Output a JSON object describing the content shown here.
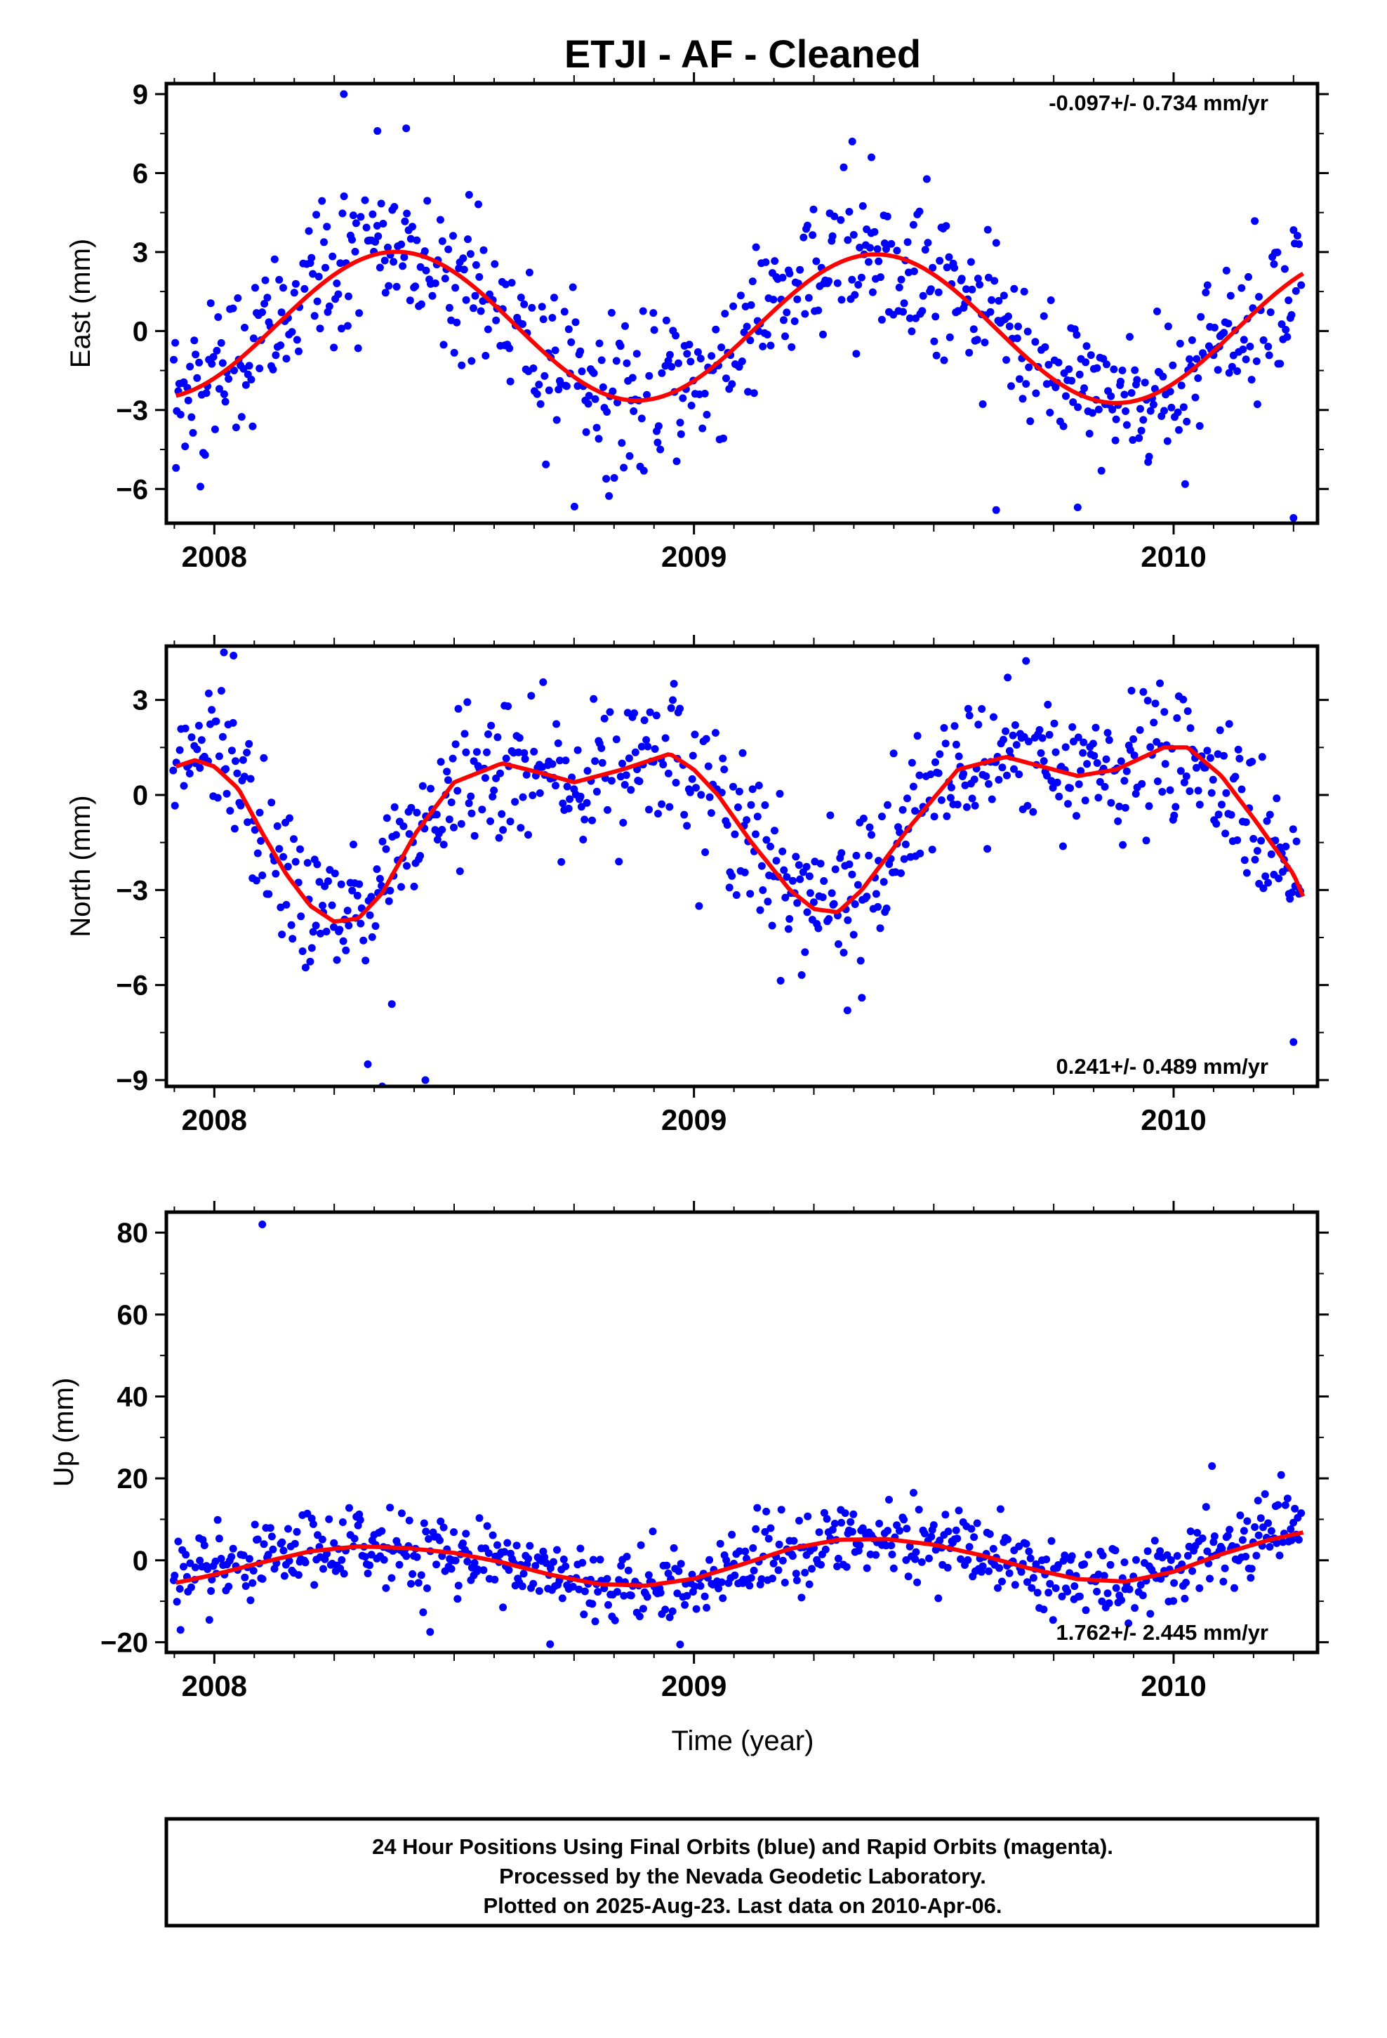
{
  "title": "ETJI  - AF - Cleaned",
  "xlabel": "Time (year)",
  "footer": {
    "line1": "24 Hour Positions Using Final Orbits (blue) and Rapid Orbits (magenta).",
    "line2": "Processed by the Nevada Geodetic Laboratory.",
    "line3": "Plotted on 2025-Aug-23. Last data on 2010-Apr-06."
  },
  "colors": {
    "final": "#0000ff",
    "fit": "#ff0000",
    "frame": "#000000"
  },
  "chart_data": [
    {
      "type": "scatter",
      "ylabel": "East (mm)",
      "rate_text": "-0.097+/- 0.734 mm/yr",
      "rate_position": "top-right",
      "xlim": [
        2007.9,
        2010.3
      ],
      "ylim": [
        -7.3,
        9.4
      ],
      "yticks": [
        -6,
        -3,
        0,
        3,
        6,
        9
      ],
      "xticks": [
        2008,
        2009,
        2010
      ],
      "fit": {
        "offset": 0.15,
        "amplitude": 2.8,
        "phase_peak": 2008.38,
        "trend_mm_per_yr": -0.097
      },
      "scatter_sd": 1.45,
      "outliers": [
        [
          2008.27,
          9.0
        ],
        [
          2008.34,
          7.6
        ],
        [
          2008.4,
          7.7
        ],
        [
          2009.33,
          7.2
        ],
        [
          2009.37,
          6.6
        ],
        [
          2009.63,
          -6.8
        ],
        [
          2009.8,
          -6.7
        ],
        [
          2010.25,
          -7.1
        ],
        [
          2007.92,
          -5.2
        ]
      ]
    },
    {
      "type": "scatter",
      "ylabel": "North (mm)",
      "rate_text": "0.241+/- 0.489 mm/yr",
      "rate_position": "bottom-right",
      "xlim": [
        2007.9,
        2010.3
      ],
      "ylim": [
        -9.2,
        4.7
      ],
      "yticks": [
        -9,
        -6,
        -3,
        0,
        3
      ],
      "xticks": [
        2008,
        2009,
        2010
      ],
      "fit_points": [
        [
          2007.92,
          0.9
        ],
        [
          2007.96,
          1.1
        ],
        [
          2008.0,
          0.9
        ],
        [
          2008.05,
          0.2
        ],
        [
          2008.1,
          -1.2
        ],
        [
          2008.15,
          -2.5
        ],
        [
          2008.2,
          -3.5
        ],
        [
          2008.25,
          -4.0
        ],
        [
          2008.3,
          -3.9
        ],
        [
          2008.35,
          -3.1
        ],
        [
          2008.42,
          -1.2
        ],
        [
          2008.5,
          0.4
        ],
        [
          2008.6,
          1.0
        ],
        [
          2008.68,
          0.7
        ],
        [
          2008.75,
          0.4
        ],
        [
          2008.85,
          0.8
        ],
        [
          2008.95,
          1.3
        ],
        [
          2009.0,
          0.8
        ],
        [
          2009.05,
          0.0
        ],
        [
          2009.12,
          -1.5
        ],
        [
          2009.2,
          -3.0
        ],
        [
          2009.25,
          -3.6
        ],
        [
          2009.3,
          -3.7
        ],
        [
          2009.35,
          -3.0
        ],
        [
          2009.45,
          -1.0
        ],
        [
          2009.55,
          0.8
        ],
        [
          2009.65,
          1.2
        ],
        [
          2009.7,
          1.0
        ],
        [
          2009.8,
          0.6
        ],
        [
          2009.88,
          0.8
        ],
        [
          2009.98,
          1.5
        ],
        [
          2010.03,
          1.5
        ],
        [
          2010.1,
          0.6
        ],
        [
          2010.17,
          -0.8
        ],
        [
          2010.25,
          -2.5
        ],
        [
          2010.27,
          -3.2
        ]
      ],
      "scatter_sd": 1.1,
      "outliers": [
        [
          2008.35,
          -9.2
        ],
        [
          2008.44,
          -9.0
        ],
        [
          2008.32,
          -8.5
        ],
        [
          2008.37,
          -6.6
        ],
        [
          2010.25,
          -7.8
        ],
        [
          2009.32,
          -6.8
        ],
        [
          2009.35,
          -6.4
        ],
        [
          2008.02,
          4.5
        ],
        [
          2008.04,
          4.4
        ]
      ]
    },
    {
      "type": "scatter",
      "ylabel": "Up (mm)",
      "rate_text": "1.762+/- 2.445 mm/yr",
      "rate_position": "bottom-right",
      "xlim": [
        2007.9,
        2010.3
      ],
      "ylim": [
        -22.5,
        85
      ],
      "yticks": [
        -20,
        0,
        20,
        40,
        60,
        80
      ],
      "xticks": [
        2008,
        2009,
        2010
      ],
      "fit_points": [
        [
          2007.92,
          -5.5
        ],
        [
          2008.0,
          -3.5
        ],
        [
          2008.1,
          -0.5
        ],
        [
          2008.2,
          2.2
        ],
        [
          2008.3,
          3.4
        ],
        [
          2008.4,
          3.0
        ],
        [
          2008.5,
          1.8
        ],
        [
          2008.6,
          -0.5
        ],
        [
          2008.7,
          -3.5
        ],
        [
          2008.8,
          -5.8
        ],
        [
          2008.9,
          -6.2
        ],
        [
          2009.0,
          -4.5
        ],
        [
          2009.1,
          -1.0
        ],
        [
          2009.2,
          2.8
        ],
        [
          2009.3,
          5.0
        ],
        [
          2009.4,
          5.2
        ],
        [
          2009.5,
          3.8
        ],
        [
          2009.6,
          1.2
        ],
        [
          2009.7,
          -2.0
        ],
        [
          2009.8,
          -4.6
        ],
        [
          2009.9,
          -5.2
        ],
        [
          2010.0,
          -2.8
        ],
        [
          2010.1,
          1.5
        ],
        [
          2010.2,
          5.0
        ],
        [
          2010.27,
          6.8
        ]
      ],
      "scatter_sd": 4.6,
      "outliers": [
        [
          2008.1,
          82
        ],
        [
          2010.08,
          23
        ],
        [
          2008.7,
          -20.5
        ],
        [
          2008.45,
          -17.5
        ]
      ]
    }
  ]
}
